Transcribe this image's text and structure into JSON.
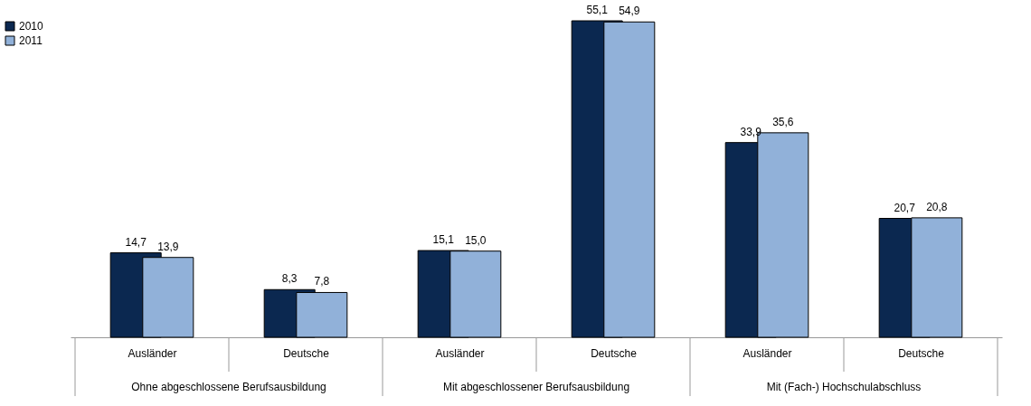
{
  "chart_data": {
    "type": "bar",
    "categories": [
      "Ausländer",
      "Deutsche",
      "Ausländer",
      "Deutsche",
      "Ausländer",
      "Deutsche"
    ],
    "series": [
      {
        "name": "2010",
        "color": "#0b2850",
        "values": [
          14.7,
          8.3,
          15.1,
          55.1,
          33.9,
          20.7
        ],
        "value_labels": [
          "14,7",
          "8,3",
          "15,1",
          "55,1",
          "33,9",
          "20,7"
        ]
      },
      {
        "name": "2011",
        "color": "#91b1d9",
        "values": [
          13.9,
          7.8,
          15.0,
          54.9,
          35.6,
          20.8
        ],
        "value_labels": [
          "13,9",
          "7,8",
          "15,0",
          "54,9",
          "35,6",
          "20,8"
        ]
      }
    ],
    "legend": "left",
    "grid": false,
    "annotations": [
      "Ohne abgeschlossene Berufsausbildung",
      "Mit abgeschlossener Berufsausbildung",
      "Mit (Fach-) Hochschulabschluss"
    ]
  }
}
